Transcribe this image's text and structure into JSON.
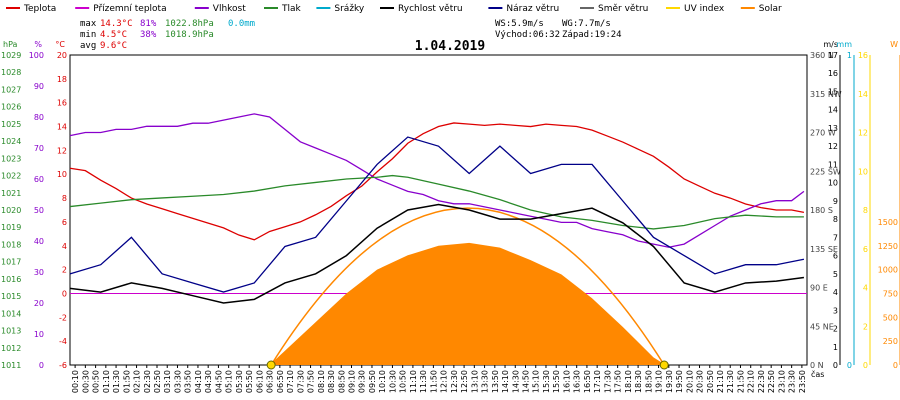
{
  "legend": [
    {
      "label": "Teplota",
      "color": "#dd0000",
      "kind": "line"
    },
    {
      "label": "Přízemní teplota",
      "color": "#cc00cc",
      "kind": "line"
    },
    {
      "label": "Vlhkost",
      "color": "#8800cc",
      "kind": "line"
    },
    {
      "label": "Tlak",
      "color": "#2a8a2a",
      "kind": "line"
    },
    {
      "label": "Srážky",
      "color": "#00aacc",
      "kind": "line"
    },
    {
      "label": "Rychlost větru",
      "color": "#000000",
      "kind": "line"
    },
    {
      "label": "Náraz větru",
      "color": "#000088",
      "kind": "line"
    },
    {
      "label": "Směr větru",
      "color": "#666666",
      "kind": "line"
    },
    {
      "label": "UV index",
      "color": "#ffd800",
      "kind": "line"
    },
    {
      "label": "Solar",
      "color": "#ff8800",
      "kind": "line"
    }
  ],
  "stats": {
    "max": {
      "label": "max",
      "temp": "14.3°C",
      "hum": "81%",
      "press": "1022.8hPa",
      "rain": "0.0mm"
    },
    "min": {
      "label": "min",
      "temp": "4.5°C",
      "hum": "38%",
      "press": "1018.9hPa"
    },
    "avg": {
      "label": "avg",
      "temp": "9.6°C"
    }
  },
  "wind_info": {
    "ws": "WS:5.9m/s",
    "wg": "WG:7.7m/s",
    "sunrise": "Východ:06:32",
    "sunset": "Západ:19:24"
  },
  "chart_data": {
    "type": "line",
    "title": "1.04.2019",
    "x_axis_label": "čas",
    "x_range": [
      0,
      24
    ],
    "axes": {
      "hpa": {
        "label": "hPa",
        "range": [
          1011,
          1029
        ],
        "ticks": [
          "1011",
          "1012",
          "1013",
          "1014",
          "1015",
          "1016",
          "1017",
          "1018",
          "1019",
          "1020",
          "1021",
          "1022",
          "1023",
          "1024",
          "1025",
          "1026",
          "1027",
          "1028",
          "1029"
        ],
        "color": "#2a8a2a"
      },
      "pct": {
        "label": "%",
        "range": [
          0,
          100
        ],
        "ticks": [
          "0",
          "10",
          "20",
          "30",
          "40",
          "50",
          "60",
          "70",
          "80",
          "90",
          "100"
        ],
        "color": "#8800cc"
      },
      "degc": {
        "label": "°C",
        "range": [
          -6,
          20
        ],
        "ticks": [
          "-6",
          "-4",
          "-2",
          "0",
          "2",
          "4",
          "6",
          "8",
          "10",
          "12",
          "14",
          "16",
          "18",
          "20"
        ],
        "color": "#dd0000"
      },
      "dir": {
        "ticks": [
          {
            "v": 0,
            "t": "0 N"
          },
          {
            "v": 45,
            "t": "45 NE"
          },
          {
            "v": 90,
            "t": "90 E"
          },
          {
            "v": 135,
            "t": "135 SE"
          },
          {
            "v": 180,
            "t": "180 S"
          },
          {
            "v": 225,
            "t": "225 SW"
          },
          {
            "v": 270,
            "t": "270 W"
          },
          {
            "v": 315,
            "t": "315 NW"
          },
          {
            "v": 360,
            "t": "360 N"
          }
        ],
        "range": [
          0,
          360
        ],
        "color": "#444444"
      },
      "ms": {
        "label": "m/s",
        "range": [
          0,
          17
        ],
        "ticks": [
          "0",
          "1",
          "2",
          "3",
          "4",
          "5",
          "6",
          "7",
          "8",
          "9",
          "10",
          "11",
          "12",
          "13",
          "14",
          "15",
          "16",
          "17"
        ],
        "color": "#000000"
      },
      "mm": {
        "label": "mm",
        "range": [
          0,
          1
        ],
        "ticks": [
          "0",
          "1"
        ],
        "color": "#00aacc"
      },
      "uv": {
        "range": [
          0,
          16
        ],
        "ticks": [
          "0",
          "2",
          "4",
          "6",
          "8",
          "10",
          "12",
          "14",
          "16"
        ],
        "color": "#ffd800"
      },
      "w": {
        "label": "W",
        "range": [
          0,
          3250
        ],
        "ticks": [
          "0",
          "250",
          "500",
          "750",
          "1000",
          "1250",
          "1500"
        ],
        "color": "#ff8800"
      }
    },
    "x_ticks": [
      "00:10",
      "00:30",
      "00:50",
      "01:10",
      "01:30",
      "01:50",
      "02:10",
      "02:30",
      "02:50",
      "03:10",
      "03:30",
      "03:50",
      "04:10",
      "04:30",
      "04:50",
      "05:10",
      "05:30",
      "05:50",
      "06:10",
      "06:30",
      "06:50",
      "07:10",
      "07:30",
      "07:50",
      "08:10",
      "08:30",
      "08:50",
      "09:10",
      "09:30",
      "09:50",
      "10:10",
      "10:30",
      "10:50",
      "11:10",
      "11:30",
      "11:50",
      "12:10",
      "12:30",
      "12:50",
      "13:10",
      "13:30",
      "13:50",
      "14:10",
      "14:30",
      "14:50",
      "15:10",
      "15:30",
      "15:50",
      "16:10",
      "16:30",
      "16:50",
      "17:10",
      "17:30",
      "17:50",
      "18:10",
      "18:30",
      "18:50",
      "19:10",
      "19:30",
      "19:50",
      "20:10",
      "20:30",
      "20:50",
      "21:10",
      "21:30",
      "21:50",
      "22:10",
      "22:30",
      "22:50",
      "23:10",
      "23:30",
      "23:50"
    ],
    "series": [
      {
        "name": "Teplota",
        "axis": "degc",
        "color": "#dd0000",
        "x": [
          0,
          0.5,
          1,
          1.5,
          2,
          2.5,
          3,
          3.5,
          4,
          4.5,
          5,
          5.5,
          6,
          6.5,
          7,
          7.5,
          8,
          8.5,
          9,
          9.5,
          10,
          10.5,
          11,
          11.5,
          12,
          12.5,
          13,
          13.5,
          14,
          14.5,
          15,
          15.5,
          16,
          16.5,
          17,
          17.5,
          18,
          18.5,
          19,
          19.5,
          20,
          20.5,
          21,
          21.5,
          22,
          22.5,
          23,
          23.5,
          23.9
        ],
        "y": [
          10.5,
          10.3,
          9.5,
          8.8,
          8.0,
          7.5,
          7.1,
          6.7,
          6.3,
          5.9,
          5.5,
          4.9,
          4.5,
          5.2,
          5.6,
          6.0,
          6.6,
          7.3,
          8.2,
          9.0,
          10.2,
          11.3,
          12.6,
          13.4,
          14.0,
          14.3,
          14.2,
          14.1,
          14.2,
          14.1,
          14.0,
          14.2,
          14.1,
          14.0,
          13.7,
          13.2,
          12.7,
          12.1,
          11.5,
          10.6,
          9.6,
          9.0,
          8.4,
          8.0,
          7.5,
          7.2,
          7.0,
          7.0,
          6.8
        ]
      },
      {
        "name": "Vlhkost",
        "axis": "pct",
        "color": "#8800cc",
        "x": [
          0,
          0.5,
          1,
          1.5,
          2,
          2.5,
          3,
          3.5,
          4,
          4.5,
          5,
          5.5,
          6,
          6.5,
          7,
          7.5,
          8,
          8.5,
          9,
          9.5,
          10,
          10.5,
          11,
          11.5,
          12,
          12.5,
          13,
          13.5,
          14,
          14.5,
          15,
          15.5,
          16,
          16.5,
          17,
          17.5,
          18,
          18.5,
          19,
          19.5,
          20,
          20.5,
          21,
          21.5,
          22,
          22.5,
          23,
          23.5,
          23.9
        ],
        "y": [
          74,
          75,
          75,
          76,
          76,
          77,
          77,
          77,
          78,
          78,
          79,
          80,
          81,
          80,
          76,
          72,
          70,
          68,
          66,
          63,
          60,
          58,
          56,
          55,
          53,
          52,
          52,
          51,
          50,
          49,
          48,
          47,
          46,
          46,
          44,
          43,
          42,
          40,
          39,
          38,
          39,
          42,
          45,
          48,
          50,
          52,
          53,
          53,
          56
        ]
      },
      {
        "name": "Tlak",
        "axis": "hpa",
        "color": "#2a8a2a",
        "x": [
          0,
          1,
          2,
          3,
          4,
          5,
          6,
          7,
          8,
          9,
          10,
          10.5,
          11,
          12,
          13,
          14,
          15,
          16,
          17,
          18,
          19,
          20,
          21,
          22,
          23,
          23.9
        ],
        "y": [
          1020.2,
          1020.4,
          1020.6,
          1020.7,
          1020.8,
          1020.9,
          1021.1,
          1021.4,
          1021.6,
          1021.8,
          1021.9,
          1022.0,
          1021.9,
          1021.5,
          1021.1,
          1020.6,
          1020.0,
          1019.6,
          1019.4,
          1019.1,
          1018.9,
          1019.1,
          1019.5,
          1019.7,
          1019.6,
          1019.6
        ]
      },
      {
        "name": "Rychlost větru",
        "axis": "ms",
        "color": "#000000",
        "x": [
          0,
          1,
          2,
          3,
          4,
          5,
          6,
          7,
          8,
          9,
          10,
          11,
          12,
          13,
          14,
          15,
          16,
          17,
          18,
          19,
          20,
          21,
          22,
          23,
          23.9
        ],
        "y": [
          4.2,
          4.0,
          4.5,
          4.2,
          3.8,
          3.4,
          3.6,
          4.5,
          5.0,
          6.0,
          7.5,
          8.5,
          8.8,
          8.5,
          8.0,
          8.0,
          8.3,
          8.6,
          7.8,
          6.5,
          4.5,
          4.0,
          4.5,
          4.6,
          4.8
        ]
      },
      {
        "name": "Náraz větru",
        "axis": "ms",
        "color": "#000088",
        "x": [
          0,
          1,
          2,
          3,
          4,
          5,
          6,
          7,
          8,
          9,
          10,
          11,
          12,
          13,
          14,
          15,
          16,
          17,
          18,
          19,
          20,
          21,
          22,
          23,
          23.9
        ],
        "y": [
          5.0,
          5.5,
          7.0,
          5.0,
          4.5,
          4.0,
          4.5,
          6.5,
          7.0,
          9.0,
          11.0,
          12.5,
          12.0,
          10.5,
          12.0,
          10.5,
          11.0,
          11.0,
          9.0,
          7.0,
          6.0,
          5.0,
          5.5,
          5.5,
          5.8
        ]
      },
      {
        "name": "Solar",
        "axis": "w",
        "color": "#ff8800",
        "x": [
          6.5,
          7,
          8,
          9,
          10,
          11,
          12,
          13,
          14,
          15,
          16,
          17,
          18,
          19,
          19.4
        ],
        "y": [
          0,
          150,
          450,
          750,
          1000,
          1150,
          1250,
          1280,
          1230,
          1100,
          950,
          700,
          400,
          80,
          0
        ]
      }
    ],
    "uv_points": [
      {
        "x": 6.55,
        "y": 0
      },
      {
        "x": 19.35,
        "y": 0
      }
    ],
    "grid": false
  }
}
